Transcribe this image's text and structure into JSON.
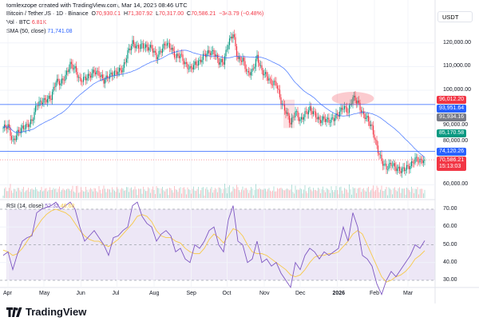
{
  "header": {
    "created": "tomlexzope created with TradingView.com, Mar 14, 2026 08:46 UTC"
  },
  "legend": {
    "symbol": "Bitcoin / TetherUS · 1D · Binance",
    "open_label": "O",
    "open": "70,930.01",
    "high_label": "H",
    "high": "71,307.92",
    "low_label": "L",
    "low": "70,317.00",
    "close_label": "C",
    "close": "70,586.21",
    "change": "−343.79 (−0.48%)",
    "vol_label": "Vol · BTC",
    "vol": "6.81K",
    "sma_label": "SMA (50, close)",
    "sma": "71,741.08",
    "rsi_label": "RSI (14, close)",
    "rsi": "52.32",
    "rsi_ma": "46.68"
  },
  "axis": {
    "currency": "USDT",
    "price_ticks": [
      "120,000.00",
      "110,000.00",
      "100,000.00",
      "90,000.00",
      "80,000.00",
      "60,000.00"
    ],
    "price_tick_values": [
      120000,
      110000,
      100000,
      90000,
      80000,
      60000
    ],
    "rsi_ticks": [
      "70.00",
      "60.00",
      "50.00",
      "40.00",
      "30.00"
    ],
    "rsi_tick_values": [
      70,
      60,
      50,
      40,
      30
    ],
    "time_ticks": [
      {
        "label": "Apr",
        "date": "2025-04-01"
      },
      {
        "label": "May",
        "date": "2025-05-01"
      },
      {
        "label": "Jun",
        "date": "2025-06-01"
      },
      {
        "label": "Jul",
        "date": "2025-07-01"
      },
      {
        "label": "Aug",
        "date": "2025-08-01"
      },
      {
        "label": "Sep",
        "date": "2025-09-01"
      },
      {
        "label": "Oct",
        "date": "2025-10-01"
      },
      {
        "label": "Nov",
        "date": "2025-11-01"
      },
      {
        "label": "Dec",
        "date": "2025-12-01"
      },
      {
        "label": "2026",
        "date": "2026-01-01"
      },
      {
        "label": "Feb",
        "date": "2026-02-01"
      },
      {
        "label": "Mar",
        "date": "2026-03-01"
      }
    ]
  },
  "price_labels": [
    {
      "text": "96,012.20",
      "value": 96012.2,
      "color": "#f23645"
    },
    {
      "text": "93,951.64",
      "value": 93951.64,
      "color": "#2962ff"
    },
    {
      "text": "91,934.16",
      "value": 91934.16,
      "color": "#787b86"
    },
    {
      "text": "85,170.58",
      "value": 85170.58,
      "color": "#089981"
    },
    {
      "text": "74,120.26",
      "value": 74120.26,
      "color": "#2962ff"
    },
    {
      "text": "70,586.21",
      "value": 70586.21,
      "color": "#f23645",
      "sub": "15:13:03"
    }
  ],
  "horizontal_lines": [
    93951.64,
    74120.26
  ],
  "colors": {
    "up": "#089981",
    "down": "#f23645",
    "sma": "#2962ff",
    "rsi": "#7e57c2",
    "rsi_ma": "#f7c948",
    "rsi_band": "#ede7f6"
  },
  "chart_data": {
    "type": "candlestick",
    "start_date": "2025-03-28",
    "step_days": 4,
    "closes": [
      84,
      85,
      78,
      82,
      84,
      85,
      87,
      94,
      95,
      96,
      97,
      104,
      103,
      106,
      111,
      109,
      104,
      105,
      106,
      108,
      107,
      104,
      106,
      107,
      108,
      109,
      116,
      120,
      118,
      119,
      118,
      118,
      114,
      117,
      120,
      118,
      114,
      115,
      111,
      109,
      111,
      112,
      115,
      116,
      116,
      112,
      112,
      120,
      124,
      113,
      113,
      107,
      108,
      114,
      108,
      106,
      103,
      103,
      95,
      91,
      86,
      91,
      87,
      90,
      92,
      90,
      87,
      88,
      87,
      88,
      90,
      93,
      91,
      97,
      95,
      90,
      88,
      84,
      76,
      70,
      67,
      69,
      67,
      66,
      67,
      68,
      71,
      70,
      70.6
    ],
    "rsi": [
      44,
      46,
      36,
      45,
      52,
      54,
      55,
      68,
      70,
      71,
      72,
      74,
      70,
      72,
      74,
      70,
      60,
      52,
      55,
      58,
      54,
      50,
      44,
      54,
      55,
      58,
      60,
      72,
      74,
      66,
      62,
      60,
      52,
      56,
      58,
      55,
      46,
      48,
      42,
      40,
      50,
      48,
      52,
      58,
      60,
      50,
      46,
      64,
      72,
      52,
      50,
      40,
      42,
      52,
      40,
      42,
      38,
      40,
      34,
      30,
      26,
      40,
      36,
      44,
      48,
      46,
      42,
      46,
      44,
      46,
      48,
      60,
      52,
      68,
      60,
      44,
      42,
      38,
      28,
      22,
      30,
      35,
      32,
      36,
      40,
      44,
      50,
      48,
      52.32
    ],
    "rsi_ma": [
      47,
      46,
      44,
      45,
      48,
      52,
      56,
      60,
      64,
      67,
      69,
      70,
      69,
      68,
      66,
      62,
      58,
      55,
      53,
      52,
      52,
      50,
      49,
      51,
      53,
      56,
      59,
      62,
      66,
      67,
      66,
      63,
      58,
      55,
      54,
      54,
      52,
      51,
      48,
      46,
      45,
      45,
      48,
      53,
      56,
      54,
      51,
      55,
      59,
      58,
      55,
      50,
      46,
      45,
      45,
      44,
      42,
      40,
      38,
      36,
      33,
      32,
      33,
      36,
      40,
      43,
      44,
      44,
      45,
      45,
      46,
      49,
      52,
      56,
      58,
      56,
      50,
      44,
      38,
      32,
      29,
      30,
      32,
      33,
      35,
      38,
      42,
      44,
      46.68
    ],
    "ylim": [
      57000,
      128000
    ],
    "rsi_ylim": [
      25,
      75
    ]
  },
  "brand": "TradingView"
}
